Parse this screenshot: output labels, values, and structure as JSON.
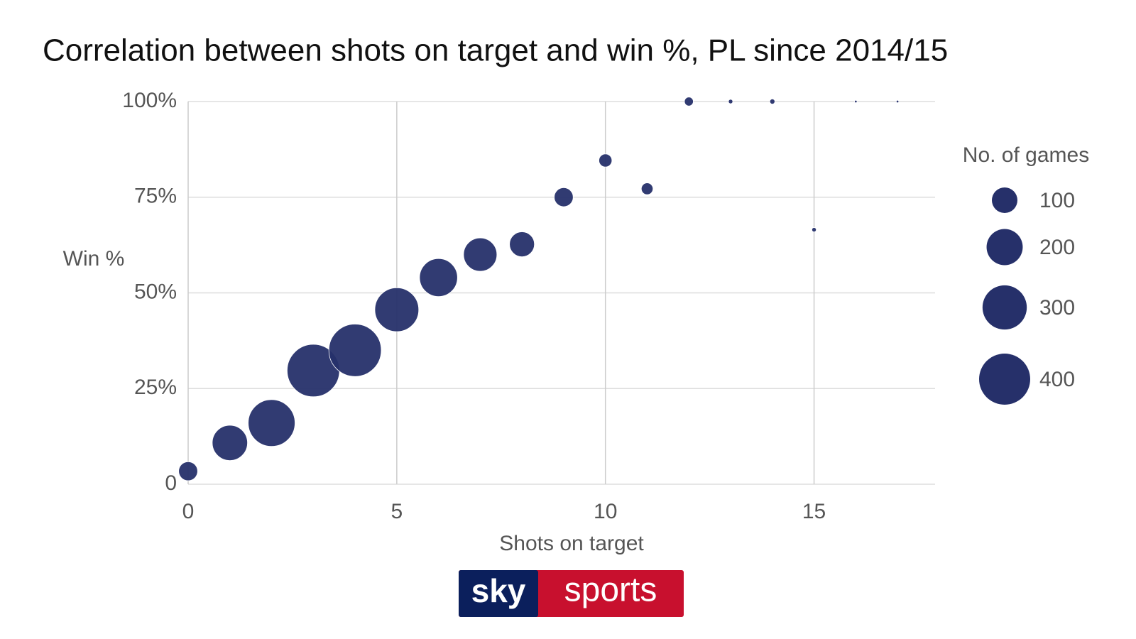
{
  "chart_data": {
    "type": "bubble",
    "title": "Correlation between shots on target and win %, PL since 2014/15",
    "x_label": "Shots on target",
    "y_label": "Win %",
    "x": [
      0,
      1,
      2,
      3,
      4,
      5,
      6,
      7,
      8,
      9,
      10,
      11,
      12,
      13,
      14,
      15,
      16,
      17
    ],
    "values": [
      3.4,
      10.8,
      16,
      29.7,
      35,
      45.6,
      54,
      60,
      62.7,
      75,
      84.6,
      77.2,
      100,
      100,
      100,
      66.5,
      100,
      100
    ],
    "sizes": [
      55,
      190,
      335,
      420,
      420,
      295,
      220,
      170,
      95,
      55,
      26,
      21,
      12,
      3,
      4,
      3,
      1,
      1
    ],
    "color": "#26306a",
    "xlim": [
      0,
      17.9
    ],
    "xticks": [
      0,
      5,
      10,
      15
    ],
    "ylim": [
      0,
      100
    ],
    "yticks": [
      0,
      {
        "value": 25,
        "label": "25%"
      },
      {
        "value": 50,
        "label": "50%"
      },
      {
        "value": 75,
        "label": "75%"
      },
      {
        "value": 100,
        "label": "100%"
      }
    ],
    "grid": true,
    "size_legend": {
      "title": "No. of games",
      "values": [
        100,
        200,
        300,
        400
      ]
    }
  },
  "logo": {
    "left": "sky",
    "right": "sports"
  }
}
